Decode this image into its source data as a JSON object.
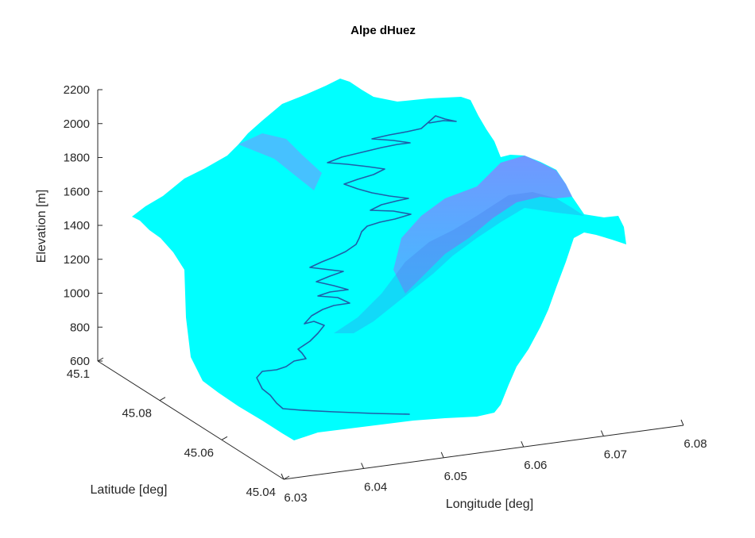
{
  "chart_data": {
    "type": "surface",
    "title": "Alpe dHuez",
    "xlabel": "Longitude [deg]",
    "ylabel": "Latitude [deg]",
    "zlabel": "Elevation [m]",
    "xlim": [
      6.03,
      6.08
    ],
    "ylim": [
      45.04,
      45.1
    ],
    "zlim": [
      600,
      2200
    ],
    "x_ticks": [
      "6.03",
      "6.04",
      "6.05",
      "6.06",
      "6.07",
      "6.08"
    ],
    "y_ticks": [
      "45.04",
      "45.06",
      "45.08",
      "45.1"
    ],
    "z_ticks": [
      "600",
      "800",
      "1000",
      "1200",
      "1400",
      "1600",
      "1800",
      "2000",
      "2200"
    ],
    "colormap": [
      "#00ffff",
      "#ff00ff"
    ],
    "route_color": "#1f5fa8",
    "grid": false,
    "legend": "none"
  }
}
